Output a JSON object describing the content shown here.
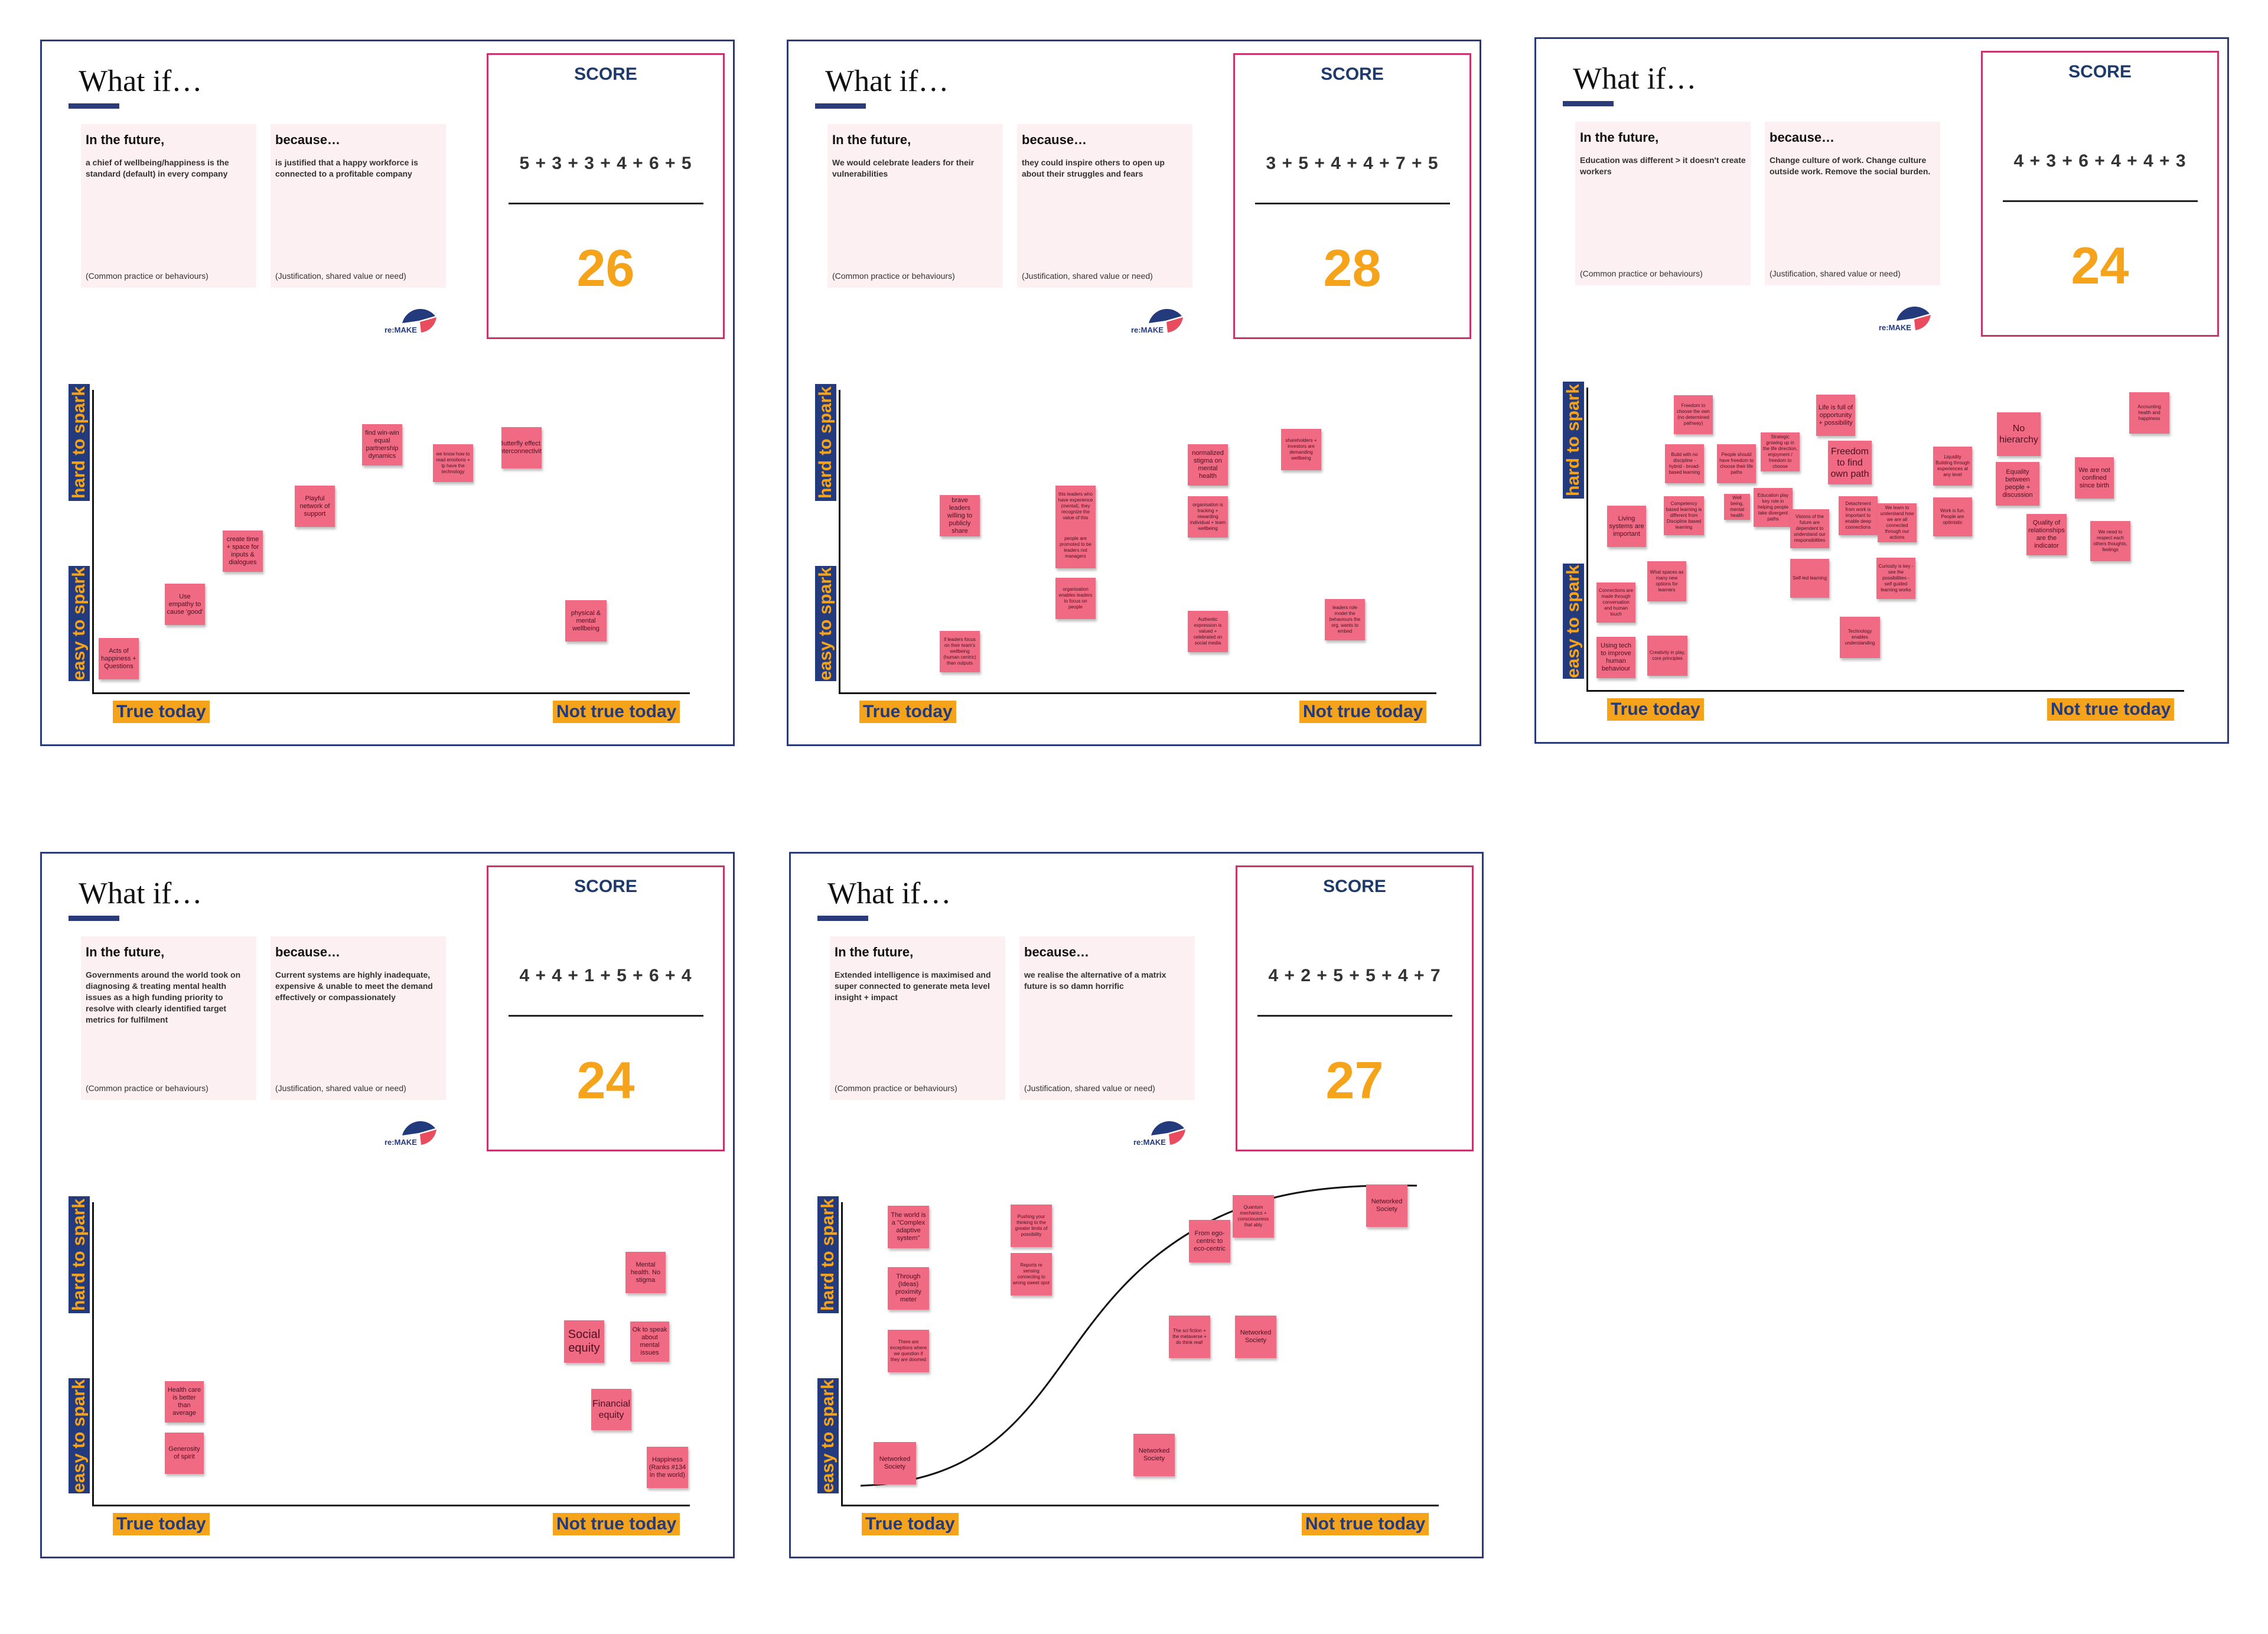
{
  "labels": {
    "what_if": "What if…",
    "in_future": "In the future,",
    "because": "because…",
    "practice_footer": "(Common practice or behaviours)",
    "justification_footer": "(Justification, shared value or need)",
    "score_title": "SCORE",
    "hard_to_spark": "hard to spark",
    "easy_to_spark": "easy to spark",
    "true_today": "True today",
    "not_true_today": "Not true today",
    "logo_text": "re:MAKE"
  },
  "colors": {
    "navy": "#2b3a78",
    "score_border": "#c9356a",
    "accent_orange": "#f5a31a",
    "sticky": "#f16a84",
    "card_bg": "#fdf0f3"
  },
  "boards": [
    {
      "future": "a chief of wellbeing/happiness is the standard (default) in every company",
      "because": "is justified that a happy workforce is connected to a profitable company",
      "score_expr": "5 + 3 + 3 + 4 + 6 + 5",
      "score_total": "26",
      "notes": [
        {
          "text": "Acts of happiness + Questions"
        },
        {
          "text": "Use empathy to cause 'good'"
        },
        {
          "text": "create time + space for inputs & dialogues"
        },
        {
          "text": "Playful network of support"
        },
        {
          "text": "find win-win equal partnership dynamics"
        },
        {
          "text": "we know how to read emotions + tp have the technology"
        },
        {
          "text": "Butterfly effect / interconnectivity"
        },
        {
          "text": "physical & mental wellbeing"
        }
      ]
    },
    {
      "future": "We would celebrate leaders for their vulnerabilities",
      "because": "they could inspire others to open up about their struggles and fears",
      "score_expr": "3 + 5 + 4 + 4 + 7 + 5",
      "score_total": "28",
      "notes": [
        {
          "text": "brave leaders willing to publicly share"
        },
        {
          "text": "if leaders focus on their team's wellbeing (human centric) than outputs"
        },
        {
          "text": "this leaders who have experience (mental), they recognize the value of this"
        },
        {
          "text": "people are promoted to be leaders not managers"
        },
        {
          "text": "organisation enables leaders to focus on people"
        },
        {
          "text": "normalized stigma on mental health"
        },
        {
          "text": "organisation is tracking + rewarding individual + team wellbeing"
        },
        {
          "text": "Authentic expression is valued + celebrated on social media"
        },
        {
          "text": "shareholders + investors are demanding wellbeing"
        },
        {
          "text": "leaders role model the behaviours the org. wants to embed"
        }
      ]
    },
    {
      "future": "Education was different > it doesn't create workers",
      "because": "Change culture of work. Change culture outside work. Remove the social burden.",
      "score_expr": "4 + 3 + 6 + 4 + 4 + 3",
      "score_total": "24",
      "notes": [
        {
          "text": "Living systems are important"
        },
        {
          "text": "Freedom to choose the own (no determined pathway)"
        },
        {
          "text": "Build with no discipline - hybrid - broad-based learning"
        },
        {
          "text": "Competency based learning is different from Discipline based learning"
        },
        {
          "text": "People should have freedom to choose their life paths"
        },
        {
          "text": "Strategic growing up in the life direction, enjoyment / freedom to choose"
        },
        {
          "text": "Education play key role in helping people take divergent paths"
        },
        {
          "text": "Life is full of opportunity + possibility"
        },
        {
          "text": "Freedom to find own path"
        },
        {
          "text": "Visions of the future are dependent to understand our responsibilities"
        },
        {
          "text": "Detachment from work is important to enable deep connections"
        },
        {
          "text": "We learn to understand how we are all connected through our actions"
        },
        {
          "text": "Liquidity Building through experiences at any level"
        },
        {
          "text": "Work is fun. People are optimistic"
        },
        {
          "text": "No hierarchy"
        },
        {
          "text": "Equality between people + discussion"
        },
        {
          "text": "Quality of relationships are the indicator"
        },
        {
          "text": "We are not confined since birth"
        },
        {
          "text": "Accounting health and happiness"
        },
        {
          "text": "We need to respect each others thoughts, feelings"
        },
        {
          "text": "Using tech to improve human behaviour"
        },
        {
          "text": "Connections are made through conversation and human touch"
        },
        {
          "text": "What spaces as many new options for learners"
        },
        {
          "text": "Creativity in play, core principles"
        },
        {
          "text": "Curiosity is key - see the possibilities - self guided learning works"
        },
        {
          "text": "Technology enables understanding"
        },
        {
          "text": "Self-led learning"
        },
        {
          "text": "Well being, mental health"
        }
      ]
    },
    {
      "future": "Governments around the world took on diagnosing & treating mental health issues as a high funding priority to resolve with clearly identified target metrics for fulfilment",
      "because": "Current systems are highly inadequate, expensive & unable to meet the demand effectively or compassionately",
      "score_expr": "4 + 4 + 1 + 5 + 6 + 4",
      "score_total": "24",
      "notes": [
        {
          "text": "Health care is better than average"
        },
        {
          "text": "Generosity of spirit"
        },
        {
          "text": "Mental health. No stigma"
        },
        {
          "text": "Social equity"
        },
        {
          "text": "Ok to speak about mental issues"
        },
        {
          "text": "Financial equity"
        },
        {
          "text": "Happiness (Ranks #134 in the world)"
        }
      ]
    },
    {
      "future": "Extended intelligence is maximised and super connected to generate meta level insight + impact",
      "because": "we realise the alternative of a matrix future is so damn horrific",
      "score_expr": "4 + 2 + 5 + 5 + 4 + 7",
      "score_total": "27",
      "notes": [
        {
          "text": "The world is a \"Complex adaptive system\""
        },
        {
          "text": "Through (Ideas) proximity meter"
        },
        {
          "text": "There are exceptions where we question if they are doomed"
        },
        {
          "text": "Pushing your thinking to the greater limits of possibility"
        },
        {
          "text": "Reports re sensing connecting to wrong sweet spot"
        },
        {
          "text": "From ego-centric to eco-centric"
        },
        {
          "text": "Quantum mechanics + consciousness that ably"
        },
        {
          "text": "The sci fiction + the metaverse + do think real!"
        },
        {
          "text": "Networked Society"
        },
        {
          "text": "Networked Society"
        },
        {
          "text": "Networked Society"
        },
        {
          "text": "Networked Society"
        }
      ]
    }
  ]
}
